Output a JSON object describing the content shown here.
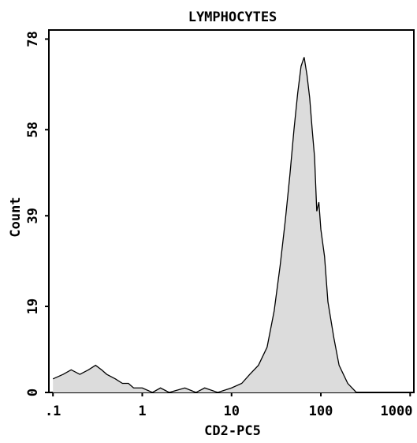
{
  "chart_data": {
    "type": "area",
    "title": "LYMPHOCYTES",
    "x_label": "CD2-PC5",
    "y_label": "Count",
    "xscale": "log",
    "xlim": [
      0.09,
      1100
    ],
    "ylim": [
      0,
      80
    ],
    "xticks": [
      {
        "value": 0.1,
        "label": ".1"
      },
      1,
      10,
      100,
      1000
    ],
    "yticks": [
      0,
      19,
      39,
      58,
      78
    ],
    "x": [
      0.1,
      0.13,
      0.16,
      0.2,
      0.25,
      0.3,
      0.35,
      0.4,
      0.5,
      0.6,
      0.7,
      0.8,
      1,
      1.3,
      1.6,
      2,
      3,
      4,
      5,
      7,
      10,
      13,
      16,
      20,
      25,
      30,
      35,
      40,
      45,
      50,
      55,
      60,
      65,
      70,
      75,
      80,
      85,
      90,
      95,
      100,
      110,
      120,
      140,
      160,
      200,
      250
    ],
    "series": [
      {
        "name": "Count",
        "color": "#dcdcdc",
        "values": [
          3,
          4,
          5,
          4,
          5,
          6,
          5,
          4,
          3,
          2,
          2,
          1,
          1,
          0,
          1,
          0,
          1,
          0,
          1,
          0,
          1,
          2,
          4,
          6,
          10,
          18,
          28,
          38,
          48,
          58,
          66,
          72,
          74,
          70,
          65,
          58,
          52,
          40,
          42,
          36,
          30,
          20,
          12,
          6,
          2,
          0
        ]
      }
    ]
  }
}
